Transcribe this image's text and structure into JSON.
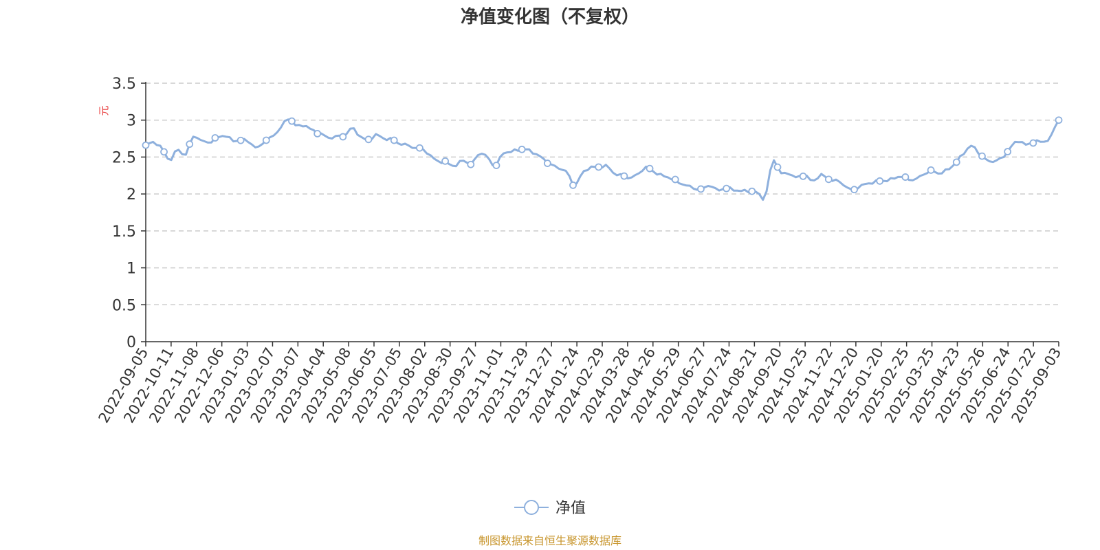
{
  "chart_data": {
    "type": "line",
    "title": "净值变化图（不复权）",
    "ylabel": "元",
    "ylim": [
      0,
      3.5
    ],
    "yticks": [
      "0",
      "0.5",
      "1",
      "1.5",
      "2",
      "2.5",
      "3",
      "3.5"
    ],
    "ytick_values": [
      0,
      0.5,
      1,
      1.5,
      2,
      2.5,
      3,
      3.5
    ],
    "grid": true,
    "legend_position": "bottom",
    "source_note": "制图数据来自恒生聚源数据库",
    "x_tick_labels": [
      "2022-09-05",
      "2022-10-11",
      "2022-11-08",
      "2022-12-06",
      "2023-01-03",
      "2023-02-07",
      "2023-03-07",
      "2023-04-04",
      "2023-05-08",
      "2023-06-05",
      "2023-07-05",
      "2023-08-02",
      "2023-08-30",
      "2023-09-27",
      "2023-11-01",
      "2023-11-29",
      "2023-12-27",
      "2024-01-24",
      "2024-02-29",
      "2024-03-28",
      "2024-04-26",
      "2024-05-29",
      "2024-06-27",
      "2024-07-24",
      "2024-08-21",
      "2024-09-20",
      "2024-10-25",
      "2024-11-22",
      "2024-12-20",
      "2025-01-20",
      "2025-02-25",
      "2025-03-25",
      "2025-04-23",
      "2025-05-26",
      "2025-06-24",
      "2025-07-22",
      "2025-09-03"
    ],
    "series": [
      {
        "name": "净值",
        "color": "#8eb0dd",
        "values": [
          2.66,
          2.7,
          2.62,
          2.46,
          2.6,
          2.53,
          2.78,
          2.72,
          2.7,
          2.76,
          2.79,
          2.72,
          2.73,
          2.71,
          2.62,
          2.72,
          2.78,
          2.9,
          3.02,
          2.92,
          2.93,
          2.86,
          2.82,
          2.76,
          2.78,
          2.79,
          2.89,
          2.78,
          2.73,
          2.8,
          2.75,
          2.74,
          2.68,
          2.66,
          2.62,
          2.6,
          2.5,
          2.44,
          2.42,
          2.38,
          2.46,
          2.4,
          2.55,
          2.5,
          2.38,
          2.55,
          2.57,
          2.6,
          2.6,
          2.55,
          2.48,
          2.4,
          2.35,
          2.3,
          2.12,
          2.28,
          2.36,
          2.36,
          2.38,
          2.28,
          2.25,
          2.22,
          2.27,
          2.36,
          2.3,
          2.25,
          2.22,
          2.16,
          2.12,
          2.08,
          2.06,
          2.12,
          2.05,
          2.08,
          2.06,
          2.04,
          2.04,
          2.02,
          1.96,
          2.45,
          2.28,
          2.28,
          2.22,
          2.26,
          2.17,
          2.26,
          2.2,
          2.18,
          2.12,
          2.05,
          2.11,
          2.14,
          2.17,
          2.18,
          2.2,
          2.24,
          2.2,
          2.2,
          2.27,
          2.31,
          2.28,
          2.33,
          2.42,
          2.55,
          2.65,
          2.55,
          2.45,
          2.45,
          2.5,
          2.64,
          2.72,
          2.66,
          2.72,
          2.7,
          2.78,
          3.0
        ],
        "markers": [
          0,
          5,
          12,
          19,
          26,
          33,
          40,
          47,
          54,
          61,
          68,
          75,
          82,
          89,
          96,
          103,
          110,
          117,
          124,
          131,
          138,
          145,
          152,
          159,
          166,
          173,
          180,
          187,
          194,
          201,
          208,
          215,
          222,
          229,
          236,
          243,
          250
        ]
      }
    ]
  }
}
